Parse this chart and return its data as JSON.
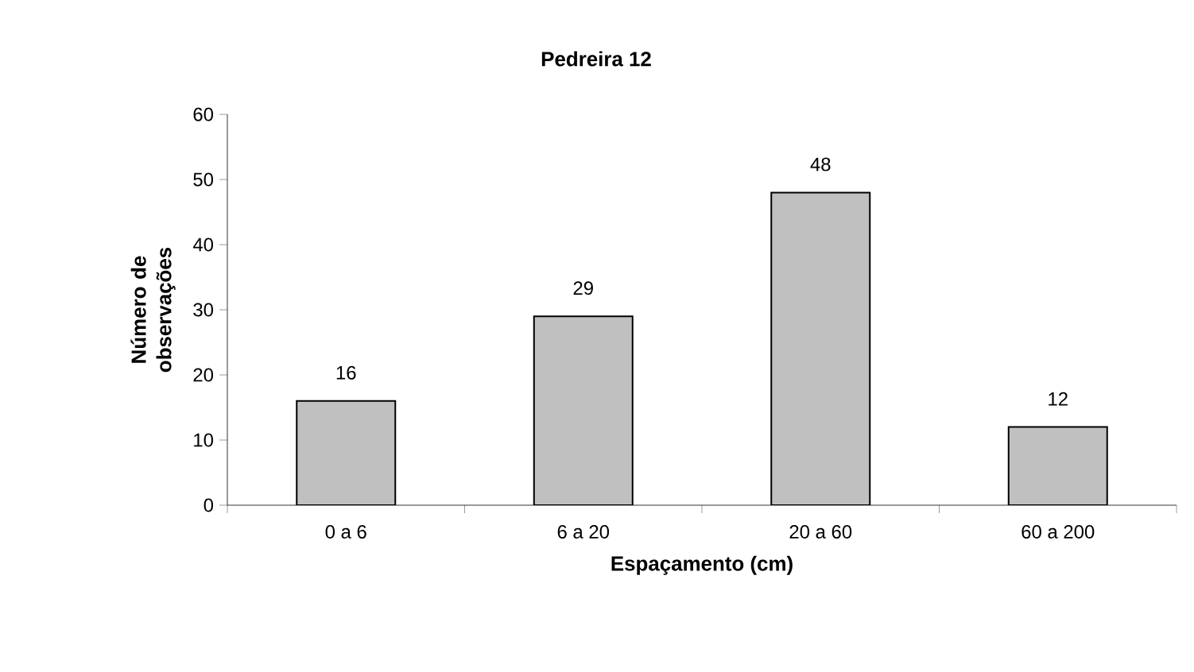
{
  "chart_data": {
    "type": "bar",
    "title": "Pedreira 12",
    "xlabel": "Espaçamento (cm)",
    "ylabel": "Número de observações",
    "categories": [
      "0 a 6",
      "6 a 20",
      "20 a 60",
      "60 a 200"
    ],
    "values": [
      16,
      29,
      48,
      12
    ],
    "value_labels": [
      "16",
      "29",
      "48",
      "12"
    ],
    "color": "#c0c0c0",
    "ylim": [
      0,
      60
    ],
    "yticks": [
      0,
      10,
      20,
      30,
      40,
      50,
      60
    ],
    "grid": false
  }
}
